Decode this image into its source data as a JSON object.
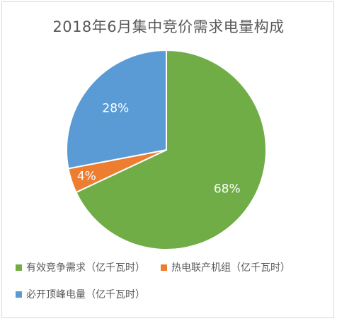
{
  "chart_data": {
    "type": "pie",
    "title": "2018年6月集中竞价需求电量构成",
    "slices": [
      {
        "name": "有效竞争需求（亿千瓦时）",
        "value": 68,
        "label": "68%",
        "color": "#70ad47"
      },
      {
        "name": "热电联产机组（亿千瓦时）",
        "value": 4,
        "label": "4%",
        "color": "#ed7d31"
      },
      {
        "name": "必开顶峰电量（亿千瓦时）",
        "value": 28,
        "label": "28%",
        "color": "#5b9bd5"
      }
    ],
    "legend_position": "bottom"
  }
}
